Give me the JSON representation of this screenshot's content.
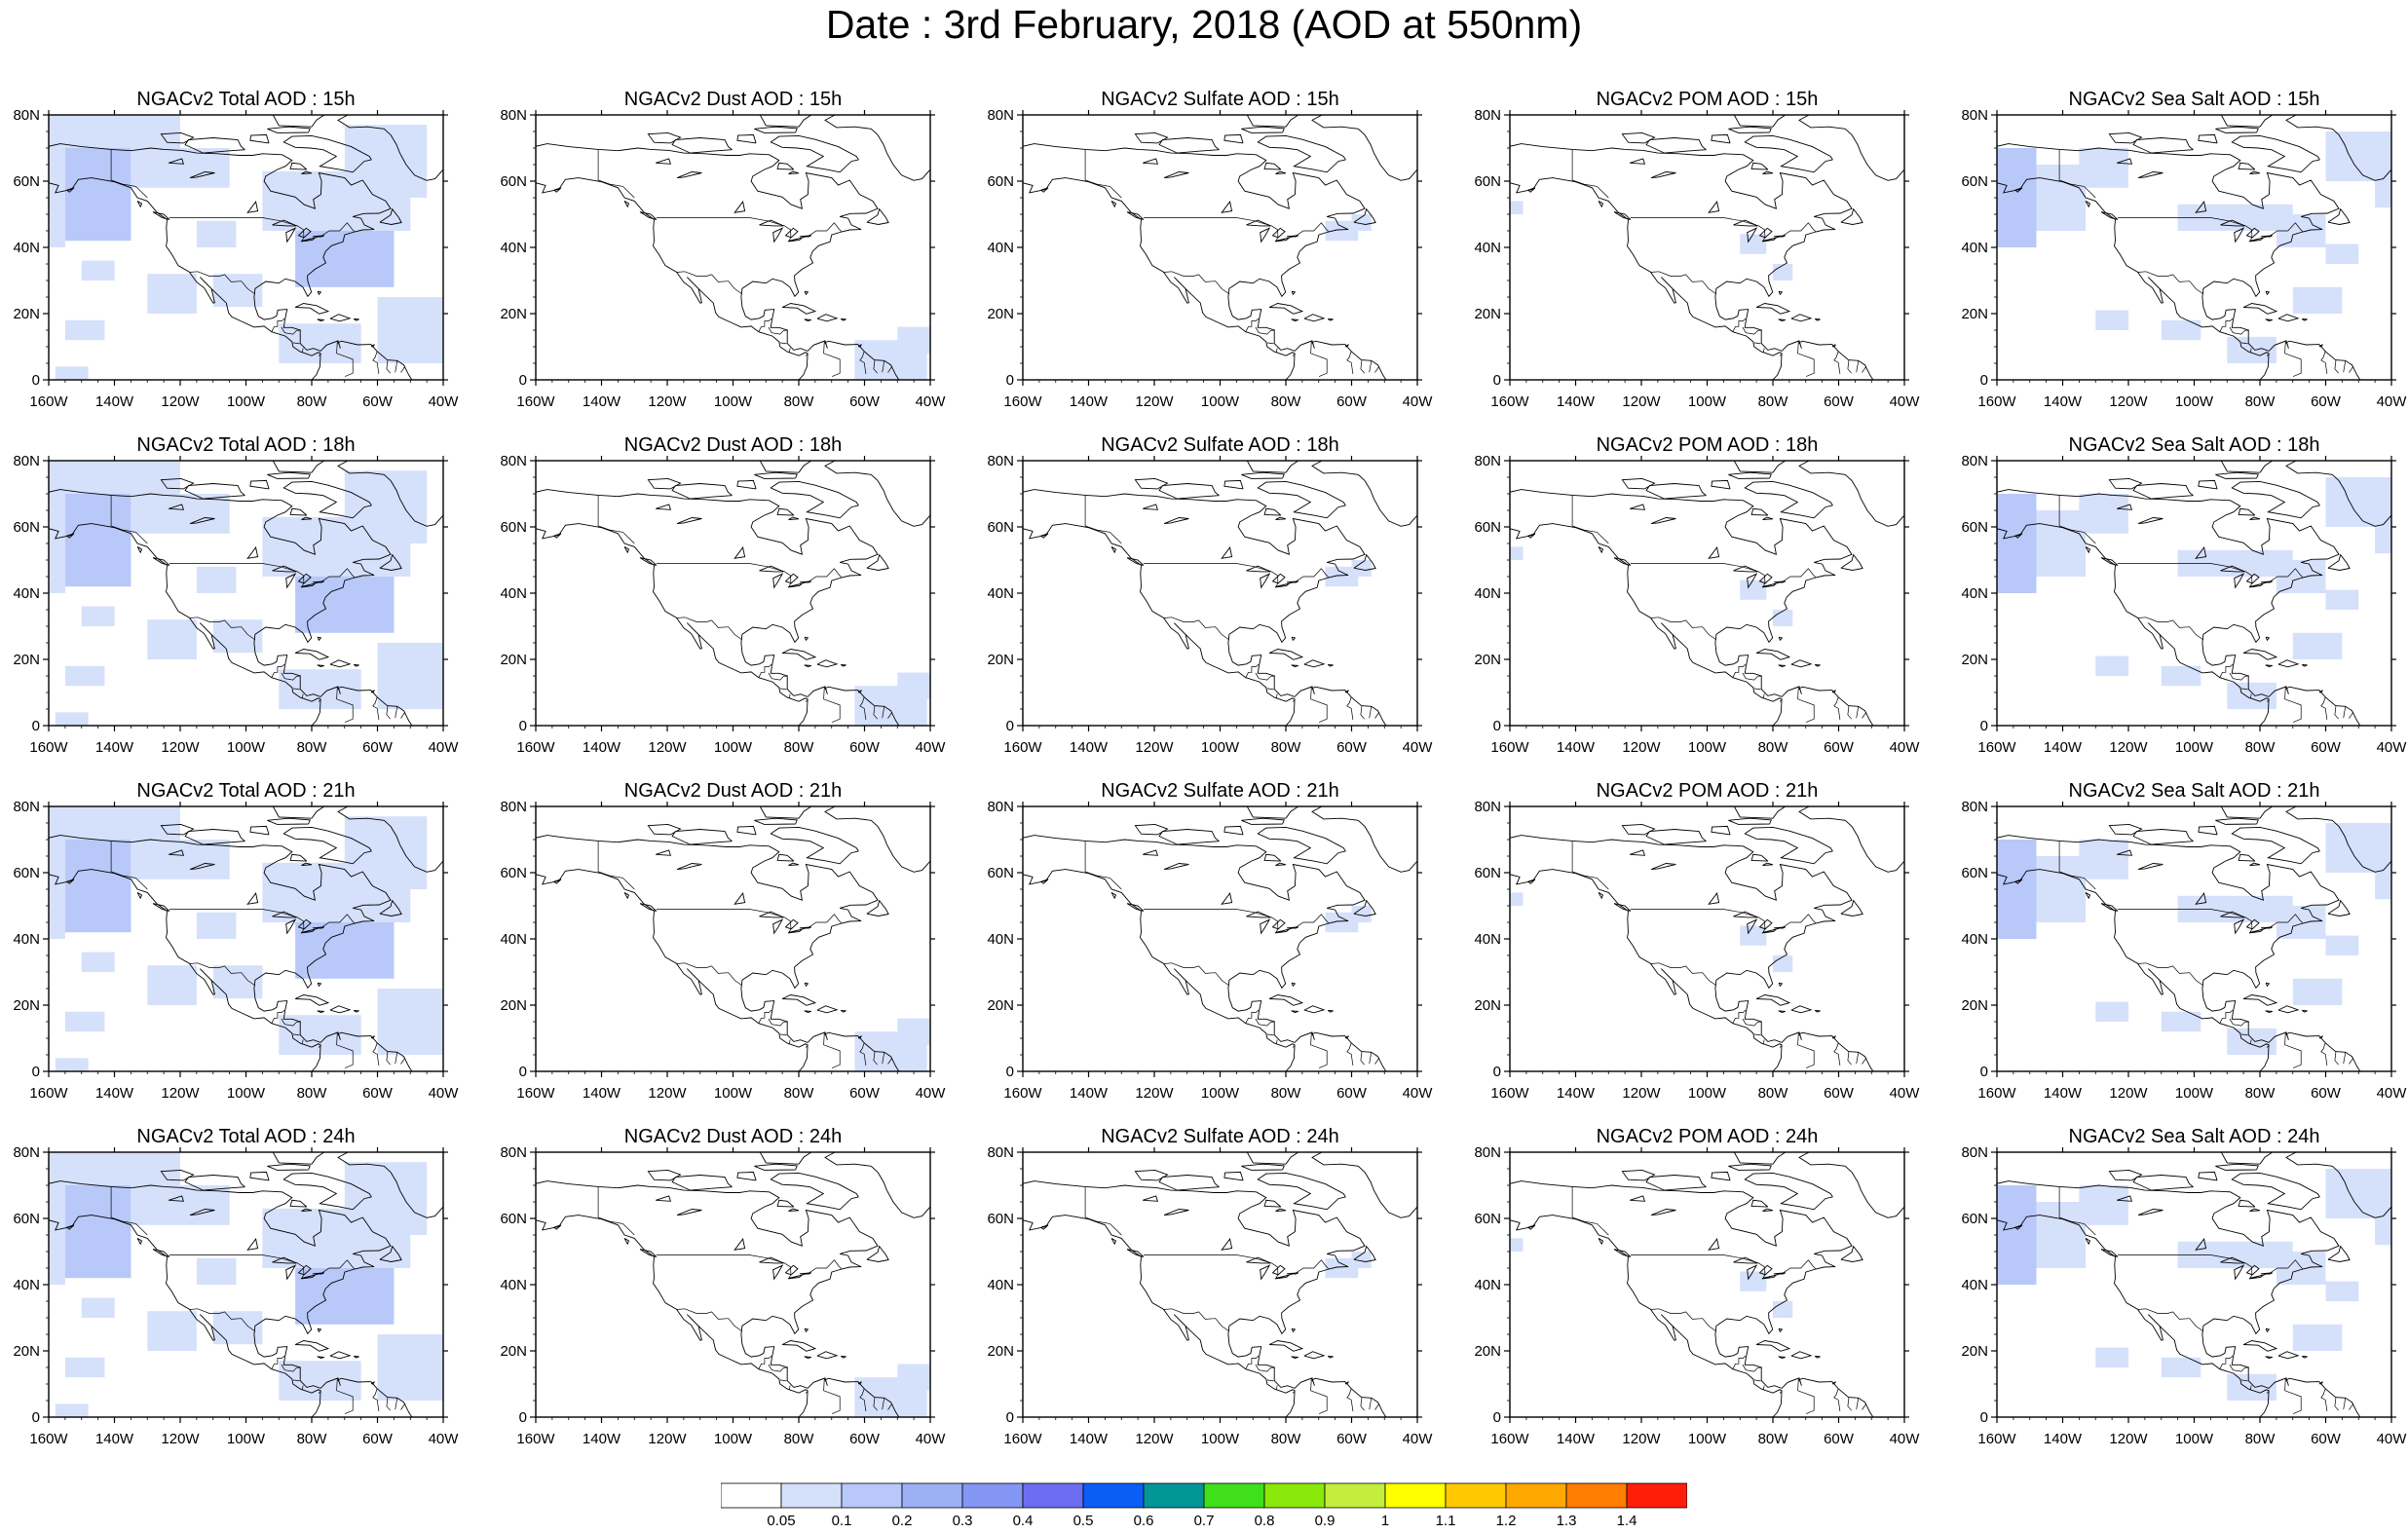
{
  "title": "Date : 3rd February, 2018 (AOD at 550nm)",
  "panel_titles": [
    [
      "NGACv2 Total AOD : 15h",
      "NGACv2 Dust AOD : 15h",
      "NGACv2 Sulfate AOD : 15h",
      "NGACv2 POM AOD : 15h",
      "NGACv2 Sea Salt AOD : 15h"
    ],
    [
      "NGACv2 Total AOD : 18h",
      "NGACv2 Dust AOD : 18h",
      "NGACv2 Sulfate AOD : 18h",
      "NGACv2 POM AOD : 18h",
      "NGACv2 Sea Salt AOD : 18h"
    ],
    [
      "NGACv2 Total AOD : 21h",
      "NGACv2 Dust AOD : 21h",
      "NGACv2 Sulfate AOD : 21h",
      "NGACv2 POM AOD : 21h",
      "NGACv2 Sea Salt AOD : 21h"
    ],
    [
      "NGACv2 Total AOD : 24h",
      "NGACv2 Dust AOD : 24h",
      "NGACv2 Sulfate AOD : 24h",
      "NGACv2 POM AOD : 24h",
      "NGACv2 Sea Salt  AOD : 24h"
    ]
  ],
  "lon_ticks": [
    "160W",
    "140W",
    "120W",
    "100W",
    "80W",
    "60W",
    "40W"
  ],
  "lat_ticks": [
    "0",
    "20N",
    "40N",
    "60N",
    "80N"
  ],
  "colorbar": {
    "labels": [
      "0.05",
      "0.1",
      "0.2",
      "0.3",
      "0.4",
      "0.5",
      "0.6",
      "0.7",
      "0.8",
      "0.9",
      "1",
      "1.1",
      "1.2",
      "1.3",
      "1.4"
    ],
    "colors": [
      "#ffffff",
      "#d5e0fb",
      "#b8c8f8",
      "#9cb0f6",
      "#8396f3",
      "#6b6ef0",
      "#0a5ef5",
      "#039696",
      "#3fe01a",
      "#8ae80a",
      "#c3ee3c",
      "#ffff00",
      "#ffc800",
      "#ffa800",
      "#ff7d00",
      "#ff1e0a"
    ]
  },
  "colors": {
    "aod_low": "#d5e0fb",
    "aod_mid": "#b8c8f8",
    "coast": "#000000"
  }
}
